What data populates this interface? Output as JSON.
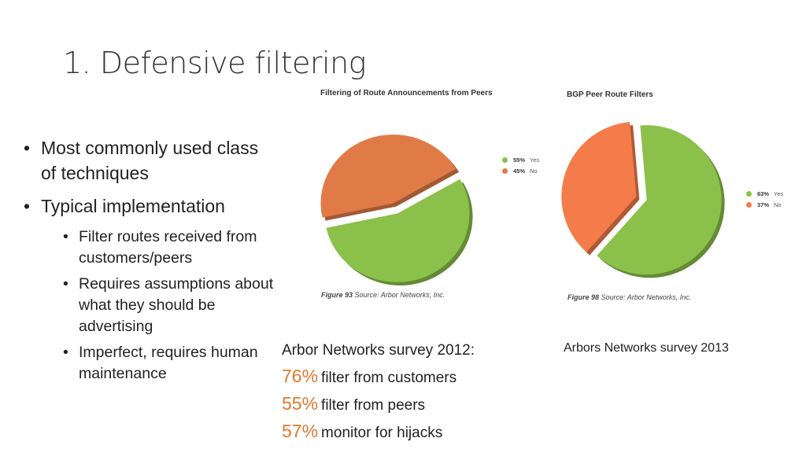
{
  "slide": {
    "title": "1. Defensive filtering",
    "bullets": [
      {
        "text": "Most commonly used class of techniques"
      },
      {
        "text": "Typical implementation",
        "sub": [
          "Filter routes received from customers/peers",
          "Requires assumptions about what they should be advertising",
          "Imperfect, requires human maintenance"
        ]
      }
    ]
  },
  "chart_data": [
    {
      "type": "pie",
      "title": "Filtering of Route Announcements from Peers",
      "series": [
        {
          "name": "Yes",
          "value": 55,
          "label": "55%",
          "color": "#8bc04a"
        },
        {
          "name": "No",
          "value": 45,
          "label": "45%",
          "color": "#e07b47"
        }
      ],
      "caption_fig": "Figure 93",
      "caption_src": "Source: Arbor Networks, Inc."
    },
    {
      "type": "pie",
      "title": "BGP Peer Route Filters",
      "series": [
        {
          "name": "Yes",
          "value": 63,
          "label": "63%",
          "color": "#8bc04a"
        },
        {
          "name": "No",
          "value": 37,
          "label": "37%",
          "color": "#f47c4a"
        }
      ],
      "caption_fig": "Figure 98",
      "caption_src": "Source: Arbor Networks, Inc."
    }
  ],
  "survey2012": {
    "heading": "Arbor Networks survey 2012:",
    "rows": [
      {
        "pct": "76%",
        "text": "filter from customers"
      },
      {
        "pct": "55%",
        "text": "filter from peers"
      },
      {
        "pct": "57%",
        "text": "monitor for hijacks"
      }
    ]
  },
  "survey2013": {
    "heading": "Arbors Networks survey 2013"
  },
  "colors": {
    "accent": "#e07830",
    "yes": "#8bc04a",
    "no": "#e07b47"
  }
}
